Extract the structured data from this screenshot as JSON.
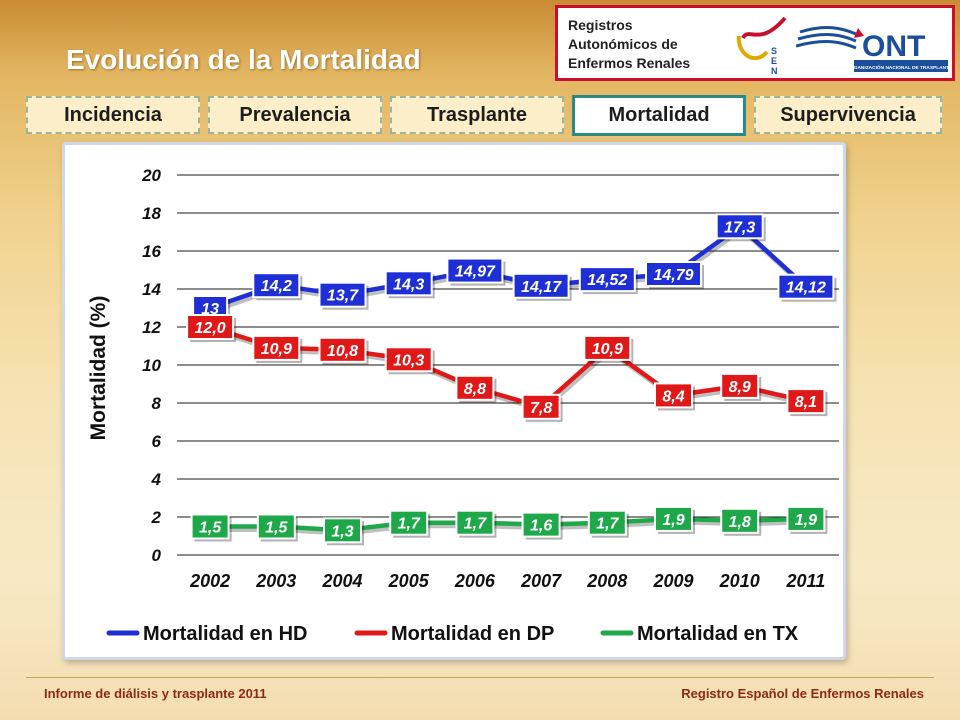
{
  "header": {
    "title": "Evolución de la Mortalidad",
    "registry_lines": [
      "Registros",
      "Autonómicos de",
      "Enfermos Renales"
    ],
    "sen_label": "SEN",
    "ont_name": "ONT",
    "ont_subtitle": "ORGANIZACIÓN NACIONAL DE TRASPLANTES"
  },
  "tabs": [
    {
      "label": "Incidencia",
      "active": false
    },
    {
      "label": "Prevalencia",
      "active": false
    },
    {
      "label": "Trasplante",
      "active": false
    },
    {
      "label": "Mortalidad",
      "active": true
    },
    {
      "label": "Supervivencia",
      "active": false
    }
  ],
  "chart_data": {
    "type": "line",
    "ylabel": "Mortalidad (%)",
    "xlabel": "",
    "ylim": [
      0,
      20
    ],
    "yticks": [
      "0",
      "2",
      "4",
      "6",
      "8",
      "10",
      "12",
      "14",
      "16",
      "18",
      "20"
    ],
    "categories": [
      "2002",
      "2003",
      "2004",
      "2005",
      "2006",
      "2007",
      "2008",
      "2009",
      "2010",
      "2011"
    ],
    "grid": true,
    "legend_position": "bottom",
    "series": [
      {
        "name": "Mortalidad en HD",
        "color": "#1f2fd6",
        "values": [
          13,
          14.2,
          13.7,
          14.3,
          14.97,
          14.17,
          14.52,
          14.79,
          17.3,
          14.12
        ],
        "labels": [
          "13",
          "14,2",
          "13,7",
          "14,3",
          "14,97",
          "14,17",
          "14,52",
          "14,79",
          "17,3",
          "14,12"
        ]
      },
      {
        "name": "Mortalidad en DP",
        "color": "#e01818",
        "values": [
          12.0,
          10.9,
          10.8,
          10.3,
          8.8,
          7.8,
          10.9,
          8.4,
          8.9,
          8.1
        ],
        "labels": [
          "12,0",
          "10,9",
          "10,8",
          "10,3",
          "8,8",
          "7,8",
          "10,9",
          "8,4",
          "8,9",
          "8,1"
        ]
      },
      {
        "name": "Mortalidad en TX",
        "color": "#1fa84a",
        "values": [
          1.5,
          1.5,
          1.3,
          1.7,
          1.7,
          1.6,
          1.7,
          1.9,
          1.8,
          1.9
        ],
        "labels": [
          "1,5",
          "1,5",
          "1,3",
          "1,7",
          "1,7",
          "1,6",
          "1,7",
          "1,9",
          "1,8",
          "1,9"
        ]
      }
    ]
  },
  "footer": {
    "left": "Informe de diálisis y trasplante 2011",
    "right": "Registro Español de Enfermos Renales"
  },
  "colors": {
    "accent_red": "#c8102e",
    "ont_blue": "#1b4f9c",
    "footer_text": "#8c2a1a",
    "active_tab_border": "#2a8a8a"
  }
}
